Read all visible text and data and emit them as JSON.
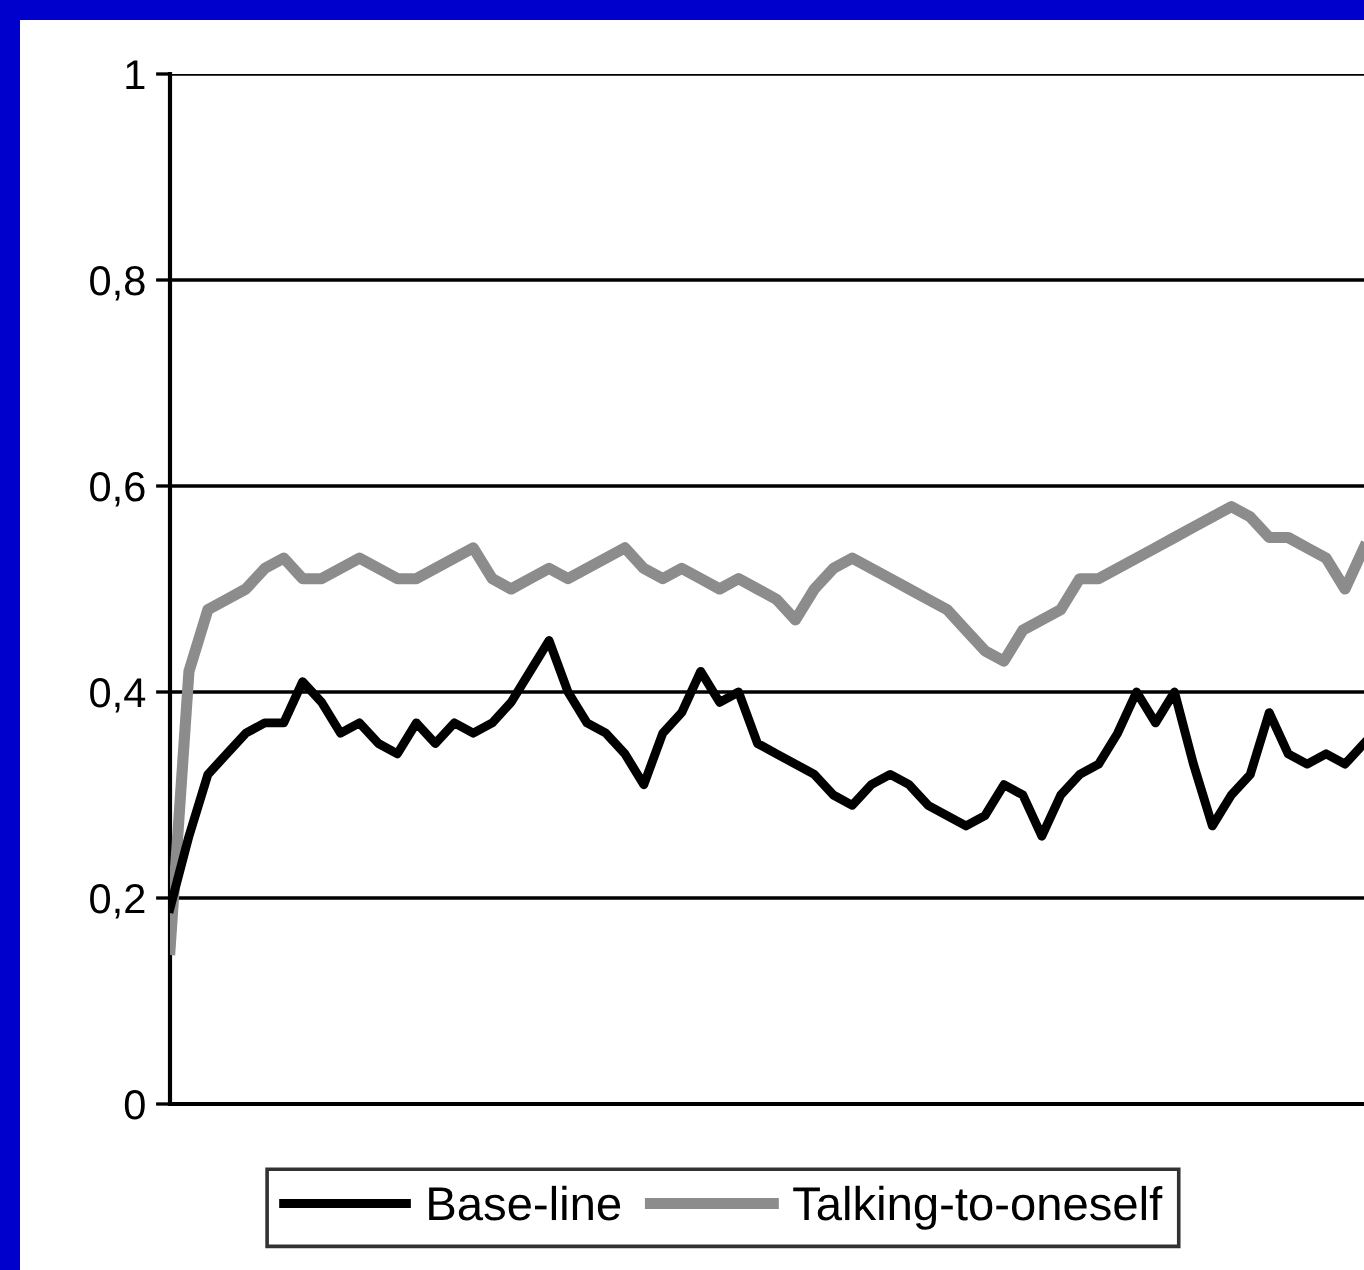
{
  "chart_data": {
    "type": "line",
    "categories": [
      null,
      null,
      null,
      null,
      null,
      null,
      null,
      null,
      null,
      null,
      null,
      null,
      null,
      null,
      null,
      null,
      null,
      null,
      null,
      null,
      null,
      null,
      null,
      null,
      null,
      null,
      null,
      null,
      null,
      null,
      null,
      null,
      null,
      null,
      null,
      null,
      null,
      null,
      null,
      null,
      null,
      null,
      null,
      null,
      null,
      null,
      null,
      null,
      null,
      null,
      null,
      null,
      null,
      null,
      null,
      null,
      null,
      null,
      null,
      null,
      null,
      null,
      null,
      null
    ],
    "series": [
      {
        "name": "Base-line",
        "color": "#000000",
        "values": [
          0.19,
          0.26,
          0.32,
          0.34,
          0.36,
          0.37,
          0.37,
          0.41,
          0.39,
          0.36,
          0.37,
          0.35,
          0.34,
          0.37,
          0.35,
          0.37,
          0.36,
          0.37,
          0.39,
          0.42,
          0.45,
          0.4,
          0.37,
          0.36,
          0.34,
          0.31,
          0.36,
          0.38,
          0.42,
          0.39,
          0.4,
          0.35,
          0.34,
          0.33,
          0.32,
          0.3,
          0.29,
          0.31,
          0.32,
          0.31,
          0.29,
          0.28,
          0.27,
          0.28,
          0.31,
          0.3,
          0.26,
          0.3,
          0.32,
          0.33,
          0.36,
          0.4,
          0.37,
          0.4,
          0.33,
          0.27,
          0.3,
          0.32,
          0.38,
          0.34,
          0.33,
          0.34,
          0.33,
          0.35
        ]
      },
      {
        "name": "Talking-to-oneself",
        "color": "#8c8c8c",
        "values": [
          0.15,
          0.42,
          0.48,
          0.49,
          0.5,
          0.52,
          0.53,
          0.51,
          0.51,
          0.52,
          0.53,
          0.52,
          0.51,
          0.51,
          0.52,
          0.53,
          0.54,
          0.51,
          0.5,
          0.51,
          0.52,
          0.51,
          0.52,
          0.53,
          0.54,
          0.52,
          0.51,
          0.52,
          0.51,
          0.5,
          0.51,
          0.5,
          0.49,
          0.47,
          0.5,
          0.52,
          0.53,
          0.52,
          0.51,
          0.5,
          0.49,
          0.48,
          0.46,
          0.44,
          0.43,
          0.46,
          0.47,
          0.48,
          0.51,
          0.51,
          0.52,
          0.53,
          0.54,
          0.55,
          0.56,
          0.57,
          0.58,
          0.57,
          0.55,
          0.55,
          0.54,
          0.53,
          0.5,
          0.54
        ]
      }
    ],
    "ylim": [
      0,
      1
    ],
    "yticks": [
      0,
      {
        "value": 0.2,
        "label": "0,2"
      },
      {
        "value": 0.4,
        "label": "0,4"
      },
      {
        "value": 0.6,
        "label": "0,6"
      },
      {
        "value": 0.8,
        "label": "0,8"
      },
      1
    ],
    "grid": "y",
    "legend": "bottom",
    "marker": "none",
    "line_style": "solid"
  }
}
